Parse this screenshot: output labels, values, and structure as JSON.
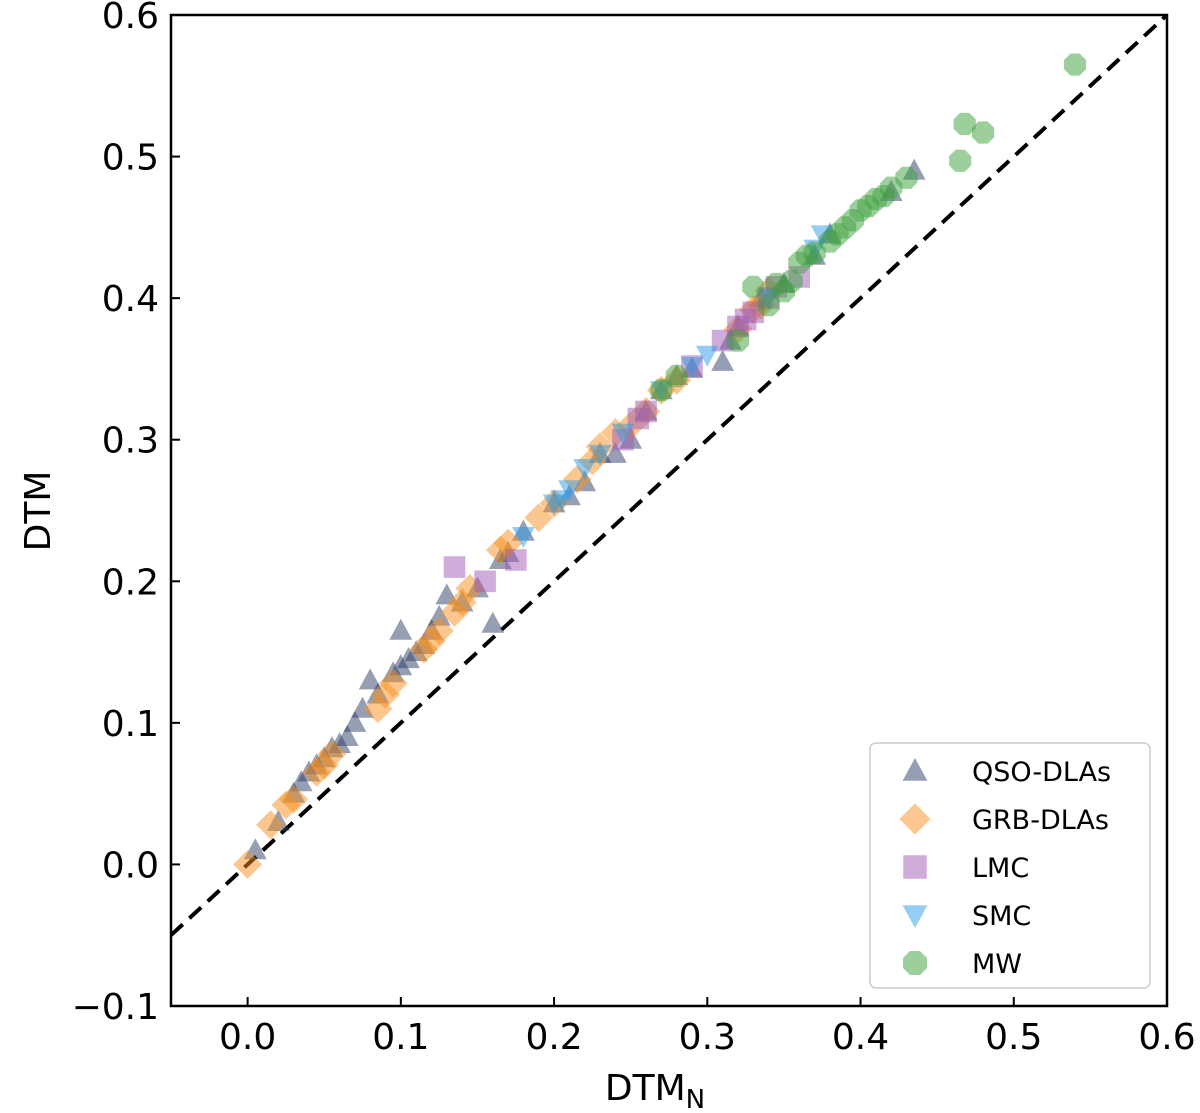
{
  "chart_data": {
    "type": "scatter",
    "xlabel": "DTM",
    "xlabel_sub": "N",
    "ylabel": "DTM",
    "xlim": [
      -0.05,
      0.6
    ],
    "ylim": [
      -0.1,
      0.6
    ],
    "xticks": [
      0.0,
      0.1,
      0.2,
      0.3,
      0.4,
      0.5,
      0.6
    ],
    "yticks": [
      -0.1,
      0.0,
      0.1,
      0.2,
      0.3,
      0.4,
      0.5,
      0.6
    ],
    "xtick_labels": [
      "0.0",
      "0.1",
      "0.2",
      "0.3",
      "0.4",
      "0.5",
      "0.6"
    ],
    "ytick_labels": [
      "−0.1",
      "0.0",
      "0.1",
      "0.2",
      "0.3",
      "0.4",
      "0.5",
      "0.6"
    ],
    "grid": false,
    "legend_position": "lower-right",
    "reference_line": {
      "style": "dashed",
      "color": "#000000",
      "x": [
        -0.05,
        0.6
      ],
      "y": [
        -0.05,
        0.6
      ]
    },
    "series": [
      {
        "name": "QSO-DLAs",
        "marker": "triangle-up",
        "color": "#2b3d66",
        "points": [
          [
            0.005,
            0.01
          ],
          [
            0.02,
            0.03
          ],
          [
            0.03,
            0.05
          ],
          [
            0.035,
            0.058
          ],
          [
            0.04,
            0.065
          ],
          [
            0.045,
            0.07
          ],
          [
            0.05,
            0.075
          ],
          [
            0.055,
            0.082
          ],
          [
            0.06,
            0.085
          ],
          [
            0.065,
            0.09
          ],
          [
            0.07,
            0.1
          ],
          [
            0.075,
            0.11
          ],
          [
            0.08,
            0.13
          ],
          [
            0.085,
            0.12
          ],
          [
            0.095,
            0.135
          ],
          [
            0.1,
            0.14
          ],
          [
            0.1,
            0.165
          ],
          [
            0.105,
            0.145
          ],
          [
            0.11,
            0.15
          ],
          [
            0.115,
            0.155
          ],
          [
            0.12,
            0.165
          ],
          [
            0.125,
            0.175
          ],
          [
            0.13,
            0.19
          ],
          [
            0.14,
            0.185
          ],
          [
            0.15,
            0.195
          ],
          [
            0.16,
            0.17
          ],
          [
            0.165,
            0.215
          ],
          [
            0.17,
            0.22
          ],
          [
            0.18,
            0.235
          ],
          [
            0.2,
            0.255
          ],
          [
            0.21,
            0.26
          ],
          [
            0.22,
            0.27
          ],
          [
            0.23,
            0.29
          ],
          [
            0.24,
            0.29
          ],
          [
            0.25,
            0.3
          ],
          [
            0.26,
            0.32
          ],
          [
            0.27,
            0.335
          ],
          [
            0.28,
            0.345
          ],
          [
            0.29,
            0.35
          ],
          [
            0.31,
            0.355
          ],
          [
            0.315,
            0.37
          ],
          [
            0.32,
            0.38
          ],
          [
            0.335,
            0.4
          ],
          [
            0.35,
            0.41
          ],
          [
            0.37,
            0.43
          ],
          [
            0.38,
            0.445
          ],
          [
            0.42,
            0.475
          ],
          [
            0.435,
            0.49
          ]
        ]
      },
      {
        "name": "GRB-DLAs",
        "marker": "diamond",
        "color": "#f7901e",
        "points": [
          [
            0.0,
            0.0
          ],
          [
            0.015,
            0.028
          ],
          [
            0.025,
            0.042
          ],
          [
            0.03,
            0.046
          ],
          [
            0.045,
            0.065
          ],
          [
            0.05,
            0.07
          ],
          [
            0.055,
            0.078
          ],
          [
            0.085,
            0.11
          ],
          [
            0.09,
            0.12
          ],
          [
            0.095,
            0.128
          ],
          [
            0.115,
            0.152
          ],
          [
            0.12,
            0.158
          ],
          [
            0.125,
            0.165
          ],
          [
            0.135,
            0.178
          ],
          [
            0.14,
            0.185
          ],
          [
            0.145,
            0.195
          ],
          [
            0.165,
            0.222
          ],
          [
            0.17,
            0.227
          ],
          [
            0.19,
            0.245
          ],
          [
            0.2,
            0.255
          ],
          [
            0.215,
            0.272
          ],
          [
            0.225,
            0.285
          ],
          [
            0.23,
            0.295
          ],
          [
            0.24,
            0.305
          ],
          [
            0.25,
            0.31
          ],
          [
            0.26,
            0.32
          ],
          [
            0.27,
            0.335
          ],
          [
            0.28,
            0.342
          ],
          [
            0.32,
            0.378
          ],
          [
            0.33,
            0.392
          ],
          [
            0.335,
            0.395
          ],
          [
            0.34,
            0.405
          ]
        ]
      },
      {
        "name": "LMC",
        "marker": "square",
        "color": "#a05ab4",
        "points": [
          [
            0.135,
            0.21
          ],
          [
            0.155,
            0.2
          ],
          [
            0.175,
            0.215
          ],
          [
            0.245,
            0.3
          ],
          [
            0.255,
            0.315
          ],
          [
            0.26,
            0.32
          ],
          [
            0.29,
            0.352
          ],
          [
            0.31,
            0.37
          ],
          [
            0.32,
            0.38
          ],
          [
            0.325,
            0.385
          ],
          [
            0.33,
            0.39
          ],
          [
            0.34,
            0.4
          ],
          [
            0.345,
            0.408
          ],
          [
            0.36,
            0.415
          ]
        ]
      },
      {
        "name": "SMC",
        "marker": "triangle-down",
        "color": "#2d9be6",
        "points": [
          [
            0.18,
            0.232
          ],
          [
            0.2,
            0.255
          ],
          [
            0.205,
            0.258
          ],
          [
            0.21,
            0.265
          ],
          [
            0.22,
            0.28
          ],
          [
            0.23,
            0.29
          ],
          [
            0.245,
            0.305
          ],
          [
            0.27,
            0.335
          ],
          [
            0.29,
            0.352
          ],
          [
            0.3,
            0.36
          ],
          [
            0.34,
            0.4
          ],
          [
            0.37,
            0.435
          ],
          [
            0.375,
            0.445
          ]
        ]
      },
      {
        "name": "MW",
        "marker": "octagon",
        "color": "#3ca03c",
        "points": [
          [
            0.27,
            0.335
          ],
          [
            0.28,
            0.345
          ],
          [
            0.32,
            0.37
          ],
          [
            0.33,
            0.408
          ],
          [
            0.34,
            0.395
          ],
          [
            0.345,
            0.41
          ],
          [
            0.35,
            0.405
          ],
          [
            0.355,
            0.412
          ],
          [
            0.36,
            0.425
          ],
          [
            0.365,
            0.43
          ],
          [
            0.37,
            0.432
          ],
          [
            0.38,
            0.44
          ],
          [
            0.385,
            0.445
          ],
          [
            0.39,
            0.45
          ],
          [
            0.395,
            0.455
          ],
          [
            0.4,
            0.462
          ],
          [
            0.405,
            0.465
          ],
          [
            0.41,
            0.47
          ],
          [
            0.415,
            0.472
          ],
          [
            0.42,
            0.478
          ],
          [
            0.43,
            0.485
          ],
          [
            0.465,
            0.497
          ],
          [
            0.468,
            0.523
          ],
          [
            0.48,
            0.517
          ],
          [
            0.54,
            0.565
          ]
        ]
      }
    ]
  }
}
